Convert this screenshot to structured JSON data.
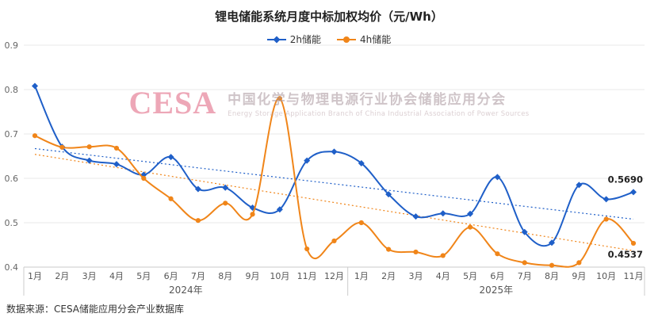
{
  "title": "锂电储能系统月度中标加权均价（元/Wh）",
  "source": "数据来源：CESA储能应用分会产业数据库",
  "watermark": {
    "logo": "CESA",
    "cn": "中国化学与物理电源行业协会储能应用分会",
    "en": "Energy Storage Application Branch of China Industrial Association of Power Sources"
  },
  "legend": [
    {
      "label": "2h储能",
      "color": "#1f5fc8",
      "marker": "diamond"
    },
    {
      "label": "4h储能",
      "color": "#f08519",
      "marker": "circle"
    }
  ],
  "chart_data": {
    "type": "line",
    "title": "锂电储能系统月度中标加权均价（元/Wh）",
    "legend_position": "top",
    "grid": true,
    "ylim": [
      0.4,
      0.9
    ],
    "yticks": [
      0.4,
      0.5,
      0.6,
      0.7,
      0.8,
      0.9
    ],
    "categories": [
      "1月",
      "2月",
      "3月",
      "4月",
      "5月",
      "6月",
      "7月",
      "8月",
      "9月",
      "10月",
      "11月",
      "12月",
      "1月",
      "2月",
      "3月",
      "4月",
      "5月",
      "6月",
      "7月",
      "8月",
      "9月",
      "10月",
      "11月"
    ],
    "groups": [
      {
        "label": "2024年",
        "count": 12
      },
      {
        "label": "2025年",
        "count": 11
      }
    ],
    "series": [
      {
        "name": "2h储能",
        "color": "#1f5fc8",
        "marker": "diamond",
        "end_label": "0.5690",
        "values": [
          0.808,
          0.671,
          0.64,
          0.632,
          0.608,
          0.648,
          0.576,
          0.579,
          0.534,
          0.53,
          0.64,
          0.66,
          0.634,
          0.564,
          0.514,
          0.521,
          0.52,
          0.603,
          0.479,
          0.455,
          0.585,
          0.553,
          0.569
        ]
      },
      {
        "name": "4h储能",
        "color": "#f08519",
        "marker": "circle",
        "end_label": "0.4537",
        "values": [
          0.696,
          0.67,
          0.671,
          0.668,
          0.6,
          0.554,
          0.505,
          0.544,
          0.519,
          0.78,
          0.441,
          0.459,
          0.5,
          0.44,
          0.434,
          0.426,
          0.49,
          0.43,
          0.41,
          0.404,
          0.41,
          0.508,
          0.4537
        ]
      }
    ],
    "trendlines": [
      {
        "name": "2h储能趋势",
        "color": "#1f5fc8",
        "start": 0.667,
        "end": 0.508
      },
      {
        "name": "4h储能趋势",
        "color": "#f08519",
        "start": 0.654,
        "end": 0.437
      }
    ]
  }
}
